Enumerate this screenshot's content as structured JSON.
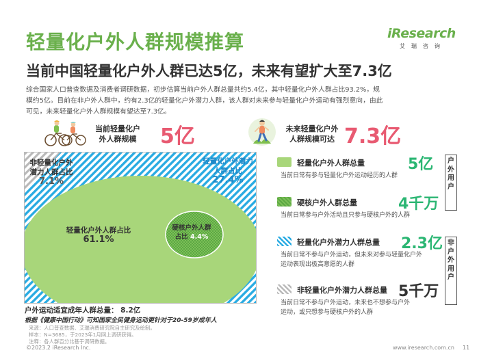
{
  "header": {
    "title": "轻量化户外人群规模推算",
    "subtitle": "当前中国轻量化户外人群已达5亿，未来有望扩大至7.3亿",
    "logo_text": "iResearch",
    "logo_sub": "艾瑞咨询"
  },
  "intro_lines": [
    "综合国家人口普查数据及消费者调研数据，初步估算当前户外人群总量共约5.4亿，其中轻量化户外人群占比93.2%，规",
    "模约5亿。目前在非户外人群中，约有2.3亿的轻量化户外潜力人群，该人群对未来参与轻量化户外运动有强烈意向，由此",
    "可见，未来轻量化户外人群规模有望达至7.3亿。"
  ],
  "summary": {
    "current_label_lines": [
      "当前轻量化户",
      "外人群规模"
    ],
    "current_value": "5亿",
    "future_label_lines": [
      "未来轻量化户外",
      "人群规模可达"
    ],
    "future_value": "7.3亿"
  },
  "diagram": {
    "non_potential_label_lines": [
      "非轻量化户外",
      "潜力人群占比"
    ],
    "non_potential_pct": "7.1%",
    "potential_label_lines": [
      "轻量化户外潜力",
      "人群占比"
    ],
    "potential_pct": "27.4%",
    "light_label": "轻量化户外人群占比",
    "light_pct": "61.1%",
    "core_label_lines": [
      "硬核户外人群",
      "占比"
    ],
    "core_pct": "4.4%",
    "shares": {
      "non_potential": 7.1,
      "potential": 27.4,
      "light": 61.1,
      "core": 4.4
    }
  },
  "total_line": "户外运动适宜成年人群总量： 8.2亿",
  "italic_note": "根据《健康中国行动》可知国家全民健身运动更针对于20-59岁成年人",
  "source_lines": [
    "来源：人口普查数据、艾瑞消费研究院自主研究及绘制。",
    "样本：N=3685，于2023年1月网上调研获得。",
    "注释：各人群百分比基于调研数据。"
  ],
  "legend": [
    {
      "name": "轻量化户外人群总量",
      "value": "5亿",
      "desc_lines": [
        "当前日常有参与轻量化户外运动经历的人群"
      ]
    },
    {
      "name": "硬核户外人群总量",
      "value": "4千万",
      "desc_lines": [
        "当前日常参与户外活动且只参与硬核户外的人群"
      ]
    },
    {
      "name": "轻量化户外潜力人群总量",
      "value": "2.3亿",
      "desc_lines": [
        "当前日常不参与户外运动，但未来对参与轻量化户外",
        "运动表现出极高意愿的人群"
      ]
    },
    {
      "name": "非轻量化户外潜力人群总量",
      "value": "5千万",
      "desc_lines": [
        "当前日常不参与户外运动，未来也不想参与户外",
        "运动，或只想参与硬核户外的人群"
      ]
    }
  ],
  "side_tags": {
    "outdoor": [
      "户",
      "外",
      "用",
      "户"
    ],
    "non_outdoor": [
      "非",
      "户",
      "外",
      "用",
      "户"
    ]
  },
  "footer": {
    "copyright": "©2023.2 iResearch Inc.",
    "site": "www.iresearch.com.cn",
    "page": "11"
  },
  "colors": {
    "brand_green": "#6ab04c",
    "value_pink": "#e85a71",
    "value_green": "#2bb673",
    "blue_stripe": "#29abe2",
    "light_green": "#a8d67a",
    "core_green": "#5ca844"
  }
}
